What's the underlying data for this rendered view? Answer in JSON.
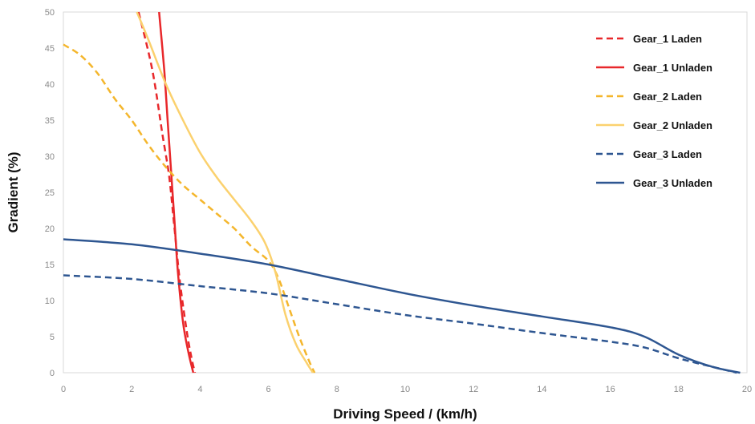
{
  "chart_data": {
    "type": "line",
    "title": "",
    "xlabel": "Driving Speed / (km/h)",
    "ylabel": "Gradient (%)",
    "xlim": [
      0,
      20
    ],
    "ylim": [
      0,
      50
    ],
    "xticks": [
      0,
      2,
      4,
      6,
      8,
      10,
      12,
      14,
      16,
      18,
      20
    ],
    "yticks": [
      0,
      5,
      10,
      15,
      20,
      25,
      30,
      35,
      40,
      45,
      50
    ],
    "grid": false,
    "legend_position": "top-right",
    "series": [
      {
        "name": "Gear_1 Laden",
        "color": "#e8282b",
        "dashed": true,
        "points": [
          [
            2.2,
            50
          ],
          [
            2.6,
            42
          ],
          [
            2.9,
            33
          ],
          [
            3.1,
            27
          ],
          [
            3.25,
            20
          ],
          [
            3.4,
            13
          ],
          [
            3.6,
            6
          ],
          [
            3.75,
            2
          ],
          [
            3.85,
            0
          ]
        ]
      },
      {
        "name": "Gear_1 Unladen",
        "color": "#e8282b",
        "dashed": false,
        "points": [
          [
            2.8,
            50
          ],
          [
            2.95,
            42
          ],
          [
            3.05,
            35
          ],
          [
            3.15,
            28
          ],
          [
            3.25,
            21
          ],
          [
            3.35,
            14
          ],
          [
            3.5,
            7
          ],
          [
            3.65,
            3
          ],
          [
            3.8,
            0
          ]
        ]
      },
      {
        "name": "Gear_2 Laden",
        "color": "#f4b62c",
        "dashed": true,
        "points": [
          [
            0,
            45.5
          ],
          [
            0.5,
            44
          ],
          [
            1,
            41.5
          ],
          [
            1.5,
            38
          ],
          [
            2,
            35
          ],
          [
            2.5,
            31.5
          ],
          [
            3,
            28.5
          ],
          [
            3.5,
            26
          ],
          [
            4,
            24
          ],
          [
            4.5,
            22
          ],
          [
            5,
            20
          ],
          [
            5.5,
            17.5
          ],
          [
            6,
            15.5
          ],
          [
            6.3,
            13
          ],
          [
            6.6,
            9
          ],
          [
            6.9,
            5
          ],
          [
            7.2,
            1.5
          ],
          [
            7.35,
            0
          ]
        ]
      },
      {
        "name": "Gear_2 Unladen",
        "color": "#fbd16e",
        "dashed": false,
        "points": [
          [
            2.15,
            50
          ],
          [
            2.5,
            46
          ],
          [
            3,
            40
          ],
          [
            3.5,
            35
          ],
          [
            4,
            30.5
          ],
          [
            4.5,
            27
          ],
          [
            5,
            24
          ],
          [
            5.5,
            21
          ],
          [
            5.9,
            18
          ],
          [
            6.2,
            14
          ],
          [
            6.5,
            8
          ],
          [
            6.8,
            4
          ],
          [
            7.1,
            1.5
          ],
          [
            7.3,
            0
          ]
        ]
      },
      {
        "name": "Gear_3 Laden",
        "color": "#2e5691",
        "dashed": true,
        "points": [
          [
            0,
            13.5
          ],
          [
            2,
            13
          ],
          [
            4,
            12
          ],
          [
            6,
            11
          ],
          [
            8,
            9.5
          ],
          [
            10,
            8
          ],
          [
            12,
            6.8
          ],
          [
            14,
            5.5
          ],
          [
            16,
            4.3
          ],
          [
            17,
            3.5
          ],
          [
            18,
            2
          ],
          [
            19,
            0.8
          ],
          [
            19.7,
            0
          ]
        ]
      },
      {
        "name": "Gear_3 Unladen",
        "color": "#2e5691",
        "dashed": false,
        "points": [
          [
            0,
            18.5
          ],
          [
            2,
            17.8
          ],
          [
            4,
            16.5
          ],
          [
            6,
            15
          ],
          [
            8,
            13
          ],
          [
            10,
            11
          ],
          [
            12,
            9.3
          ],
          [
            14,
            7.8
          ],
          [
            16,
            6.3
          ],
          [
            17,
            5
          ],
          [
            18,
            2.5
          ],
          [
            19,
            0.8
          ],
          [
            19.8,
            0
          ]
        ]
      }
    ]
  }
}
